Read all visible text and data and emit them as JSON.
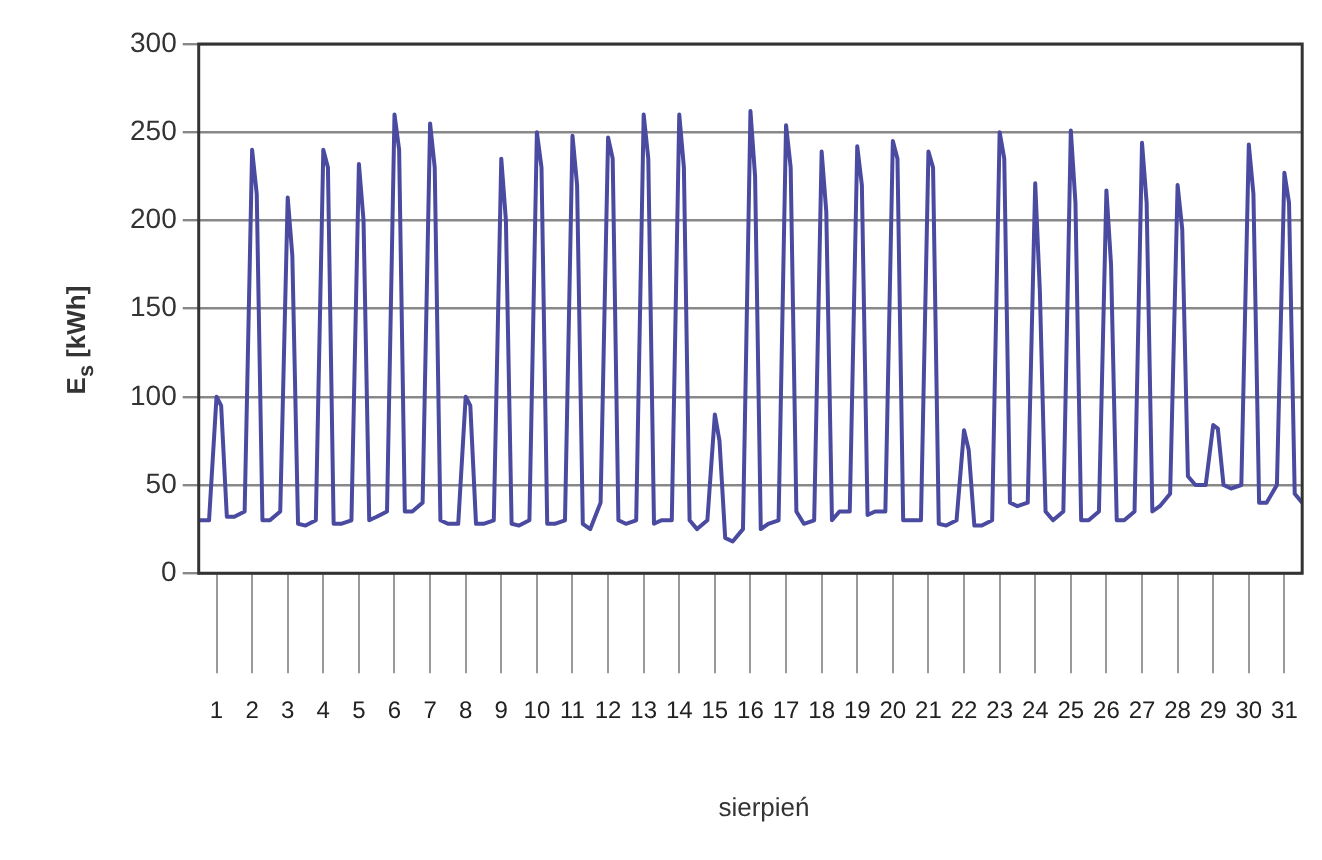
{
  "chart_data": {
    "type": "line",
    "ylabel": "E$_{s}$ [kWh]",
    "xlabel": "sierpień",
    "color": "#4a4aa0",
    "grid": "y",
    "marker": "none",
    "line_style": "solid",
    "xlim": [
      1,
      32
    ],
    "ylim": [
      0,
      300
    ],
    "yticks": [
      0,
      50,
      100,
      150,
      200,
      250,
      300
    ],
    "xticks": [
      {
        "value": 1.5,
        "label": "1"
      },
      {
        "value": 2.5,
        "label": "2"
      },
      {
        "value": 3.5,
        "label": "3"
      },
      {
        "value": 4.5,
        "label": "4"
      },
      {
        "value": 5.5,
        "label": "5"
      },
      {
        "value": 6.5,
        "label": "6"
      },
      {
        "value": 7.5,
        "label": "7"
      },
      {
        "value": 8.5,
        "label": "8"
      },
      {
        "value": 9.5,
        "label": "9"
      },
      {
        "value": 10.5,
        "label": "10"
      },
      {
        "value": 11.5,
        "label": "11"
      },
      {
        "value": 12.5,
        "label": "12"
      },
      {
        "value": 13.5,
        "label": "13"
      },
      {
        "value": 14.5,
        "label": "14"
      },
      {
        "value": 15.5,
        "label": "15"
      },
      {
        "value": 16.5,
        "label": "16"
      },
      {
        "value": 17.5,
        "label": "17"
      },
      {
        "value": 18.5,
        "label": "18"
      },
      {
        "value": 19.5,
        "label": "19"
      },
      {
        "value": 20.5,
        "label": "20"
      },
      {
        "value": 21.5,
        "label": "21"
      },
      {
        "value": 22.5,
        "label": "22"
      },
      {
        "value": 23.5,
        "label": "23"
      },
      {
        "value": 24.5,
        "label": "24"
      },
      {
        "value": 25.5,
        "label": "25"
      },
      {
        "value": 26.5,
        "label": "26"
      },
      {
        "value": 27.5,
        "label": "27"
      },
      {
        "value": 28.5,
        "label": "28"
      },
      {
        "value": 29.5,
        "label": "29"
      },
      {
        "value": 30.5,
        "label": "30"
      },
      {
        "value": 31.5,
        "label": "31"
      }
    ],
    "x": [
      1,
      1.29,
      1.5,
      1.63,
      1.79,
      2,
      2.29,
      2.5,
      2.63,
      2.79,
      3,
      3.29,
      3.5,
      3.63,
      3.79,
      4,
      4.29,
      4.5,
      4.63,
      4.79,
      5,
      5.29,
      5.5,
      5.63,
      5.79,
      6,
      6.29,
      6.5,
      6.63,
      6.79,
      7,
      7.29,
      7.5,
      7.63,
      7.79,
      8,
      8.29,
      8.5,
      8.63,
      8.79,
      9,
      9.29,
      9.5,
      9.63,
      9.79,
      10,
      10.29,
      10.5,
      10.63,
      10.79,
      11,
      11.29,
      11.5,
      11.63,
      11.79,
      12,
      12.29,
      12.5,
      12.63,
      12.79,
      13,
      13.29,
      13.5,
      13.63,
      13.79,
      14,
      14.29,
      14.5,
      14.63,
      14.79,
      15,
      15.29,
      15.5,
      15.63,
      15.79,
      16,
      16.29,
      16.5,
      16.63,
      16.79,
      17,
      17.29,
      17.5,
      17.63,
      17.79,
      18,
      18.29,
      18.5,
      18.63,
      18.79,
      19,
      19.29,
      19.5,
      19.63,
      19.79,
      20,
      20.29,
      20.5,
      20.63,
      20.79,
      21,
      21.29,
      21.5,
      21.63,
      21.79,
      22,
      22.29,
      22.5,
      22.63,
      22.79,
      23,
      23.29,
      23.5,
      23.63,
      23.79,
      24,
      24.29,
      24.5,
      24.63,
      24.79,
      25,
      25.29,
      25.5,
      25.63,
      25.79,
      26,
      26.29,
      26.5,
      26.63,
      26.79,
      27,
      27.29,
      27.5,
      27.63,
      27.79,
      28,
      28.29,
      28.5,
      28.63,
      28.79,
      29,
      29.29,
      29.5,
      29.63,
      29.79,
      30,
      30.29,
      30.5,
      30.63,
      30.79,
      31,
      31.29,
      31.5,
      31.63,
      31.79,
      32
    ],
    "values": [
      30,
      30,
      100,
      95,
      32,
      32,
      35,
      240,
      215,
      30,
      30,
      35,
      213,
      180,
      28,
      27,
      30,
      240,
      230,
      28,
      28,
      30,
      232,
      200,
      30,
      32,
      35,
      260,
      240,
      35,
      35,
      40,
      255,
      230,
      30,
      28,
      28,
      100,
      95,
      28,
      28,
      30,
      235,
      200,
      28,
      27,
      30,
      250,
      230,
      28,
      28,
      30,
      248,
      220,
      28,
      25,
      40,
      247,
      235,
      30,
      28,
      30,
      260,
      235,
      28,
      30,
      30,
      260,
      230,
      30,
      25,
      30,
      90,
      75,
      20,
      18,
      25,
      262,
      225,
      25,
      28,
      30,
      254,
      230,
      35,
      28,
      30,
      239,
      205,
      30,
      35,
      35,
      242,
      220,
      33,
      35,
      35,
      245,
      235,
      30,
      30,
      30,
      239,
      230,
      28,
      27,
      30,
      81,
      70,
      27,
      27,
      30,
      250,
      235,
      40,
      38,
      40,
      221,
      160,
      35,
      30,
      35,
      251,
      210,
      30,
      30,
      35,
      217,
      175,
      30,
      30,
      35,
      244,
      210,
      35,
      38,
      45,
      220,
      195,
      55,
      50,
      50,
      84,
      82,
      50,
      48,
      50,
      243,
      215,
      40,
      40,
      50,
      227,
      210,
      45,
      40
    ]
  }
}
